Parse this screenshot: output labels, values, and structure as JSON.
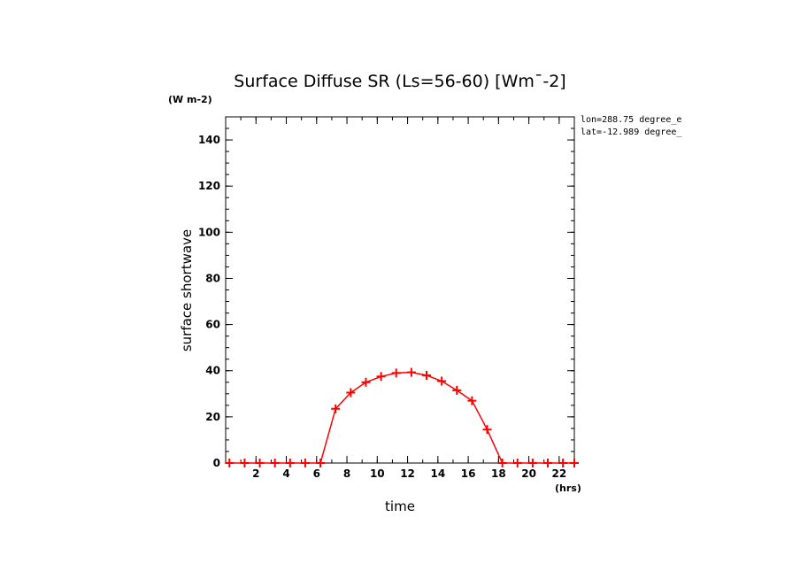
{
  "chart_data": {
    "type": "line",
    "title": "Surface Diffuse SR (Ls=56-60) [Wm¯-2]",
    "yunits": "(W m-2)",
    "xunits": "(hrs)",
    "xlabel": "time",
    "ylabel": "surface shortwave",
    "annotations": [
      "lon=288.75 degree_e",
      "lat=-12.989 degree_"
    ],
    "xlim": [
      0,
      23
    ],
    "ylim": [
      0,
      150
    ],
    "xticks": [
      2,
      4,
      6,
      8,
      10,
      12,
      14,
      16,
      18,
      20,
      22
    ],
    "yticks": [
      0,
      20,
      40,
      60,
      80,
      100,
      120,
      140
    ],
    "series": [
      {
        "name": "surface shortwave",
        "color": "#ff0000",
        "x": [
          0.25,
          1.25,
          2.25,
          3.25,
          4.25,
          5.25,
          6.25,
          7.25,
          8.25,
          9.25,
          10.25,
          11.25,
          12.25,
          13.25,
          14.25,
          15.25,
          16.25,
          17.25,
          18.25,
          19.25,
          20.25,
          21.25,
          22.25,
          23.0
        ],
        "values": [
          0,
          0,
          0,
          0,
          0,
          0,
          0,
          23.5,
          30.5,
          35,
          37.5,
          39,
          39.3,
          38,
          35.5,
          31.5,
          27,
          14.5,
          0,
          0,
          0,
          0,
          0,
          0
        ]
      }
    ]
  }
}
